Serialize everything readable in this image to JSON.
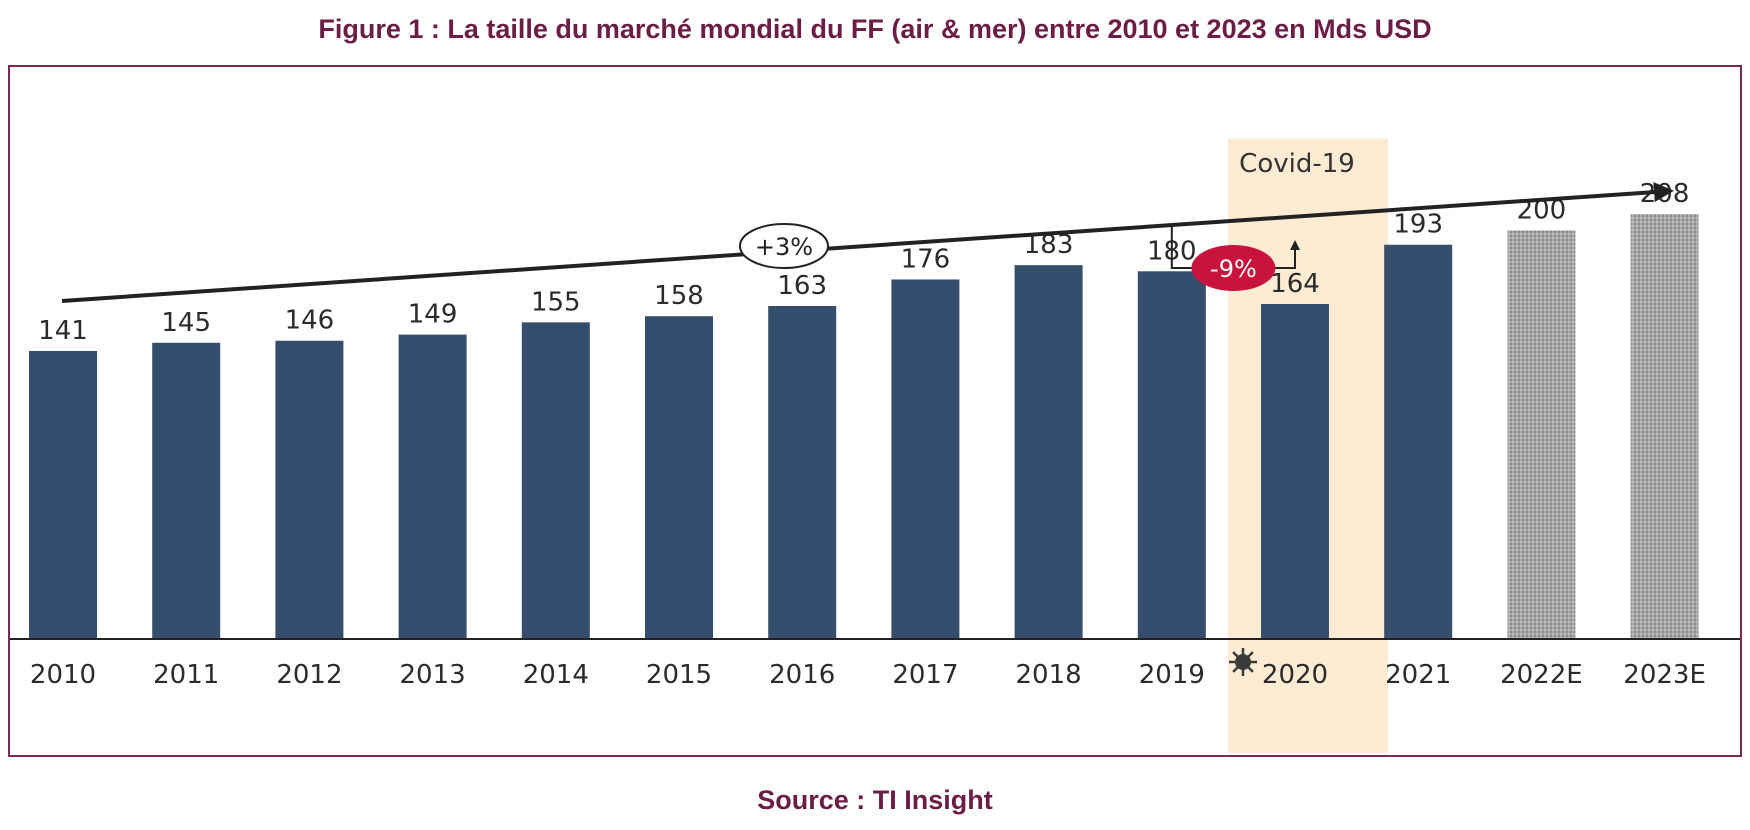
{
  "title": "Figure 1 : La taille du marché mondial du FF (air & mer) entre 2010 et 2023 en Mds USD",
  "source": "Source : TI Insight",
  "chart_data": {
    "type": "bar",
    "categories": [
      "2010",
      "2011",
      "2012",
      "2013",
      "2014",
      "2015",
      "2016",
      "2017",
      "2018",
      "2019",
      "2020",
      "2021",
      "2022E",
      "2023E"
    ],
    "values": [
      141,
      145,
      146,
      149,
      155,
      158,
      163,
      176,
      183,
      180,
      164,
      193,
      200,
      208
    ],
    "estimated": [
      false,
      false,
      false,
      false,
      false,
      false,
      false,
      false,
      false,
      false,
      false,
      false,
      true,
      true
    ],
    "ylim": [
      0,
      280
    ],
    "grid": false,
    "annotations": {
      "trend_label": "+3%",
      "drop_label": "-9%",
      "drop_from": "2019",
      "drop_to": "2020",
      "highlight_category": "2020",
      "highlight_label": "Covid-19",
      "highlight_icon": "virus-icon"
    },
    "colors": {
      "bar": "#354e6e",
      "estimate_bar": "#a5a5a5",
      "highlight": "#fdebd3",
      "drop_badge": "#c8143c",
      "title": "#6b1d45"
    }
  }
}
